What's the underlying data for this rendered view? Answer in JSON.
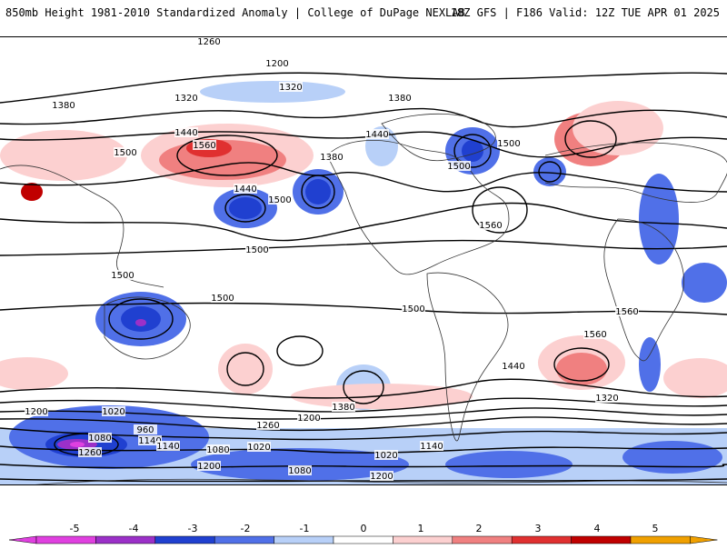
{
  "header": {
    "title_left": "850mb Height 1981-2010 Standardized Anomaly | College of DuPage NEXLAB",
    "title_right": "18Z GFS | F186 Valid: 12Z TUE APR 01 2025"
  },
  "contour_labels": [
    "1260",
    "1200",
    "1320",
    "1380",
    "1320",
    "1380",
    "1440",
    "1500",
    "1560",
    "1500",
    "1440",
    "1380",
    "1500",
    "1560",
    "1500",
    "1440",
    "1500",
    "1500",
    "1500",
    "1560",
    "1500",
    "1440",
    "1560",
    "1380",
    "1320",
    "1200",
    "1260",
    "1020",
    "960",
    "1080",
    "1140",
    "1200",
    "1260",
    "1140",
    "1080",
    "1020",
    "1200",
    "1080",
    "1140",
    "1020",
    "1200"
  ],
  "colorbar": {
    "ticks": [
      "-5",
      "-4",
      "-3",
      "-2",
      "-1",
      "0",
      "1",
      "2",
      "3",
      "4",
      "5"
    ],
    "colors": [
      "#e040e0",
      "#9b30c8",
      "#2040d0",
      "#5070e8",
      "#b8d0f8",
      "#ffffff",
      "#fcd0d0",
      "#f08080",
      "#e03030",
      "#c00000",
      "#f0a000"
    ]
  }
}
